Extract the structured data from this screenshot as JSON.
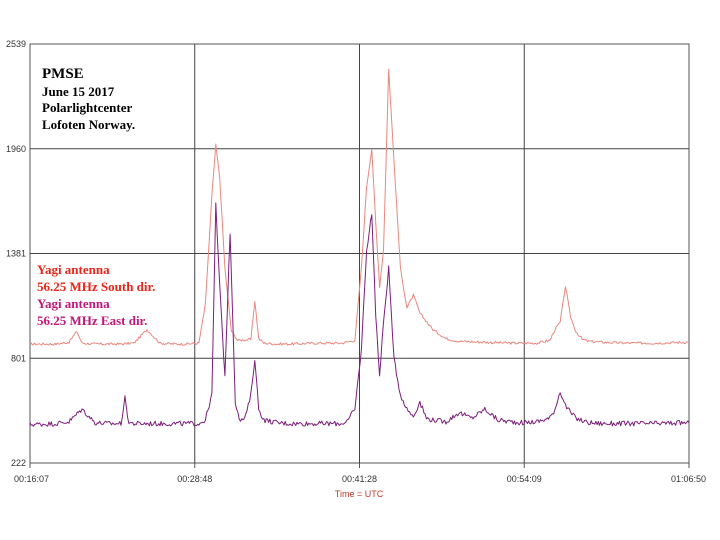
{
  "chart_data": {
    "type": "line",
    "title_lines": [
      "PMSE",
      "June 15 2017",
      "Polarlightcenter",
      "Lofoten Norway."
    ],
    "xlabel": "Time = UTC",
    "ylabel": "",
    "ylim": [
      222,
      2539
    ],
    "y_ticks": [
      "2539",
      "1960",
      "1381",
      "801",
      "222"
    ],
    "x_ticks": [
      "00:16:07",
      "00:28:48",
      "00:41:28",
      "00:54:09",
      "01:06:50"
    ],
    "grid": true,
    "legend": "left",
    "annotations": [
      {
        "text": "Yagi antenna",
        "color": "#e8261c"
      },
      {
        "text": "56.25 MHz South dir.",
        "color": "#e8261c"
      },
      {
        "text": "Yagi antenna",
        "color": "#c0187a"
      },
      {
        "text": "56.25 MHz East dir.",
        "color": "#c0187a"
      }
    ],
    "series": [
      {
        "color": "#e8877f",
        "x": [
          0,
          2,
          3,
          3.6,
          4,
          5,
          7,
          8,
          9,
          10,
          11,
          12,
          13,
          13.5,
          14,
          14.3,
          14.6,
          15,
          15.5,
          16,
          17,
          17.3,
          17.6,
          18,
          19,
          20,
          22,
          24,
          25,
          25.5,
          25.9,
          26.3,
          26.6,
          26.9,
          27.2,
          27.6,
          28,
          28.5,
          29,
          29.5,
          30,
          31,
          32,
          33,
          35,
          37,
          39,
          40,
          40.4,
          40.8,
          41.2,
          41.6,
          42,
          42.5,
          43,
          44,
          46,
          48,
          50.71
        ],
        "values": [
          880,
          880,
          890,
          950,
          885,
          880,
          880,
          885,
          960,
          885,
          880,
          880,
          885,
          1100,
          1700,
          1980,
          1800,
          1300,
          950,
          900,
          905,
          1120,
          910,
          885,
          880,
          880,
          885,
          885,
          900,
          1300,
          1750,
          1960,
          1550,
          1200,
          1400,
          2400,
          1900,
          1300,
          1080,
          1150,
          1050,
          960,
          910,
          895,
          890,
          885,
          885,
          900,
          960,
          1000,
          1200,
          1030,
          950,
          905,
          895,
          890,
          885,
          885,
          890
        ]
      },
      {
        "color": "#7b1f7a",
        "x": [
          0,
          2,
          3,
          4,
          5,
          6,
          7,
          7.3,
          7.6,
          8,
          9,
          10,
          11,
          12,
          13,
          13.5,
          14,
          14.3,
          14.6,
          15,
          15.4,
          15.8,
          16.2,
          16.6,
          17,
          17.3,
          17.6,
          18,
          19,
          20,
          22,
          24,
          24.5,
          25,
          25.5,
          25.9,
          26.3,
          26.6,
          26.9,
          27.2,
          27.6,
          28,
          28.5,
          29,
          29.5,
          30,
          30.5,
          31,
          32,
          33,
          34,
          35,
          36,
          37,
          38,
          39,
          40,
          40.4,
          40.8,
          41.2,
          41.6,
          42,
          42.5,
          43,
          44,
          46,
          48,
          50.71
        ],
        "values": [
          435,
          440,
          450,
          520,
          445,
          440,
          440,
          580,
          445,
          440,
          440,
          440,
          440,
          440,
          440,
          460,
          600,
          1650,
          1200,
          700,
          1500,
          560,
          450,
          480,
          600,
          800,
          520,
          460,
          445,
          440,
          440,
          440,
          460,
          520,
          850,
          1400,
          1600,
          1050,
          700,
          1000,
          1300,
          800,
          600,
          520,
          480,
          560,
          470,
          460,
          450,
          500,
          470,
          520,
          460,
          450,
          445,
          450,
          470,
          520,
          620,
          540,
          500,
          470,
          455,
          445,
          440,
          440,
          440,
          445
        ]
      }
    ]
  }
}
